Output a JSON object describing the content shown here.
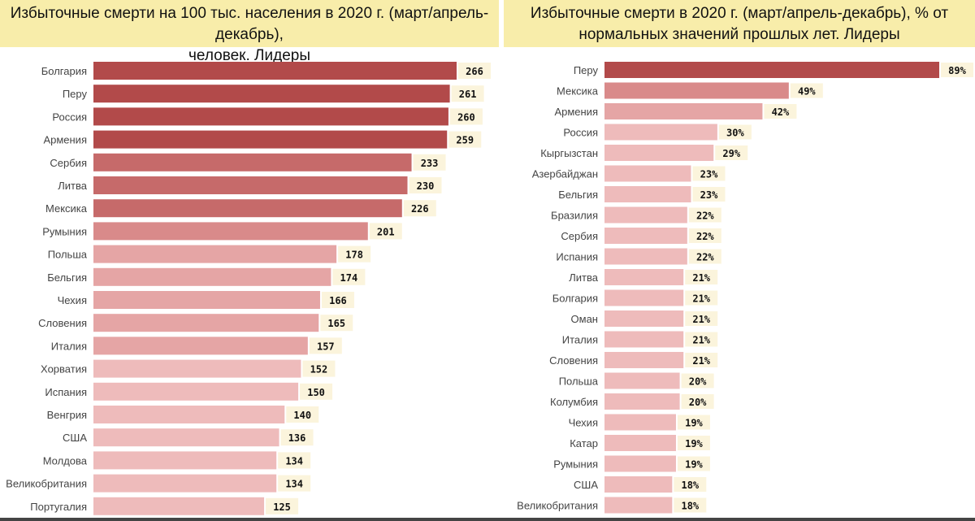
{
  "colors": {
    "title_bg": "#f8edaa",
    "value_bg": "#fbf4dc",
    "bar_scale": [
      "#b24a4a",
      "#c66a6a",
      "#d98a8a",
      "#e5a5a5",
      "#eebbbb"
    ]
  },
  "chart_data": [
    {
      "type": "bar",
      "orientation": "horizontal",
      "title": "Избыточные смерти на 100 тыс. населения в 2020 г. (март/апрель-декабрь), человек. Лидеры",
      "title_lines": [
        "Избыточные смерти на 100 тыс. населения в 2020 г. (март/апрель-декабрь),",
        "человек. Лидеры"
      ],
      "categories": [
        "Болгария",
        "Перу",
        "Россия",
        "Армения",
        "Сербия",
        "Литва",
        "Мексика",
        "Румыния",
        "Польша",
        "Бельгия",
        "Чехия",
        "Словения",
        "Италия",
        "Хорватия",
        "Испания",
        "Венгрия",
        "США",
        "Молдова",
        "Великобритания",
        "Португалия"
      ],
      "values": [
        266,
        261,
        260,
        259,
        233,
        230,
        226,
        201,
        178,
        174,
        166,
        165,
        157,
        152,
        150,
        140,
        136,
        134,
        134,
        125
      ],
      "value_labels": [
        "266",
        "261",
        "260",
        "259",
        "233",
        "230",
        "226",
        "201",
        "178",
        "174",
        "166",
        "165",
        "157",
        "152",
        "150",
        "140",
        "136",
        "134",
        "134",
        "125"
      ],
      "xlim": [
        0,
        266
      ],
      "grid": false,
      "legend": "none"
    },
    {
      "type": "bar",
      "orientation": "horizontal",
      "title": "Избыточные смерти в 2020 г. (март/апрель-декабрь), % от нормальных значений прошлых лет. Лидеры",
      "title_lines": [
        "Избыточные смерти в 2020 г. (март/апрель-декабрь), % от",
        "нормальных значений прошлых лет. Лидеры"
      ],
      "categories": [
        "Перу",
        "Мексика",
        "Армения",
        "Россия",
        "Кыргызстан",
        "Азербайджан",
        "Бельгия",
        "Бразилия",
        "Сербия",
        "Испания",
        "Литва",
        "Болгария",
        "Оман",
        "Италия",
        "Словения",
        "Польша",
        "Колумбия",
        "Чехия",
        "Катар",
        "Румыния",
        "США",
        "Великобритания"
      ],
      "values": [
        89,
        49,
        42,
        30,
        29,
        23,
        23,
        22,
        22,
        22,
        21,
        21,
        21,
        21,
        21,
        20,
        20,
        19,
        19,
        19,
        18,
        18
      ],
      "value_labels": [
        "89%",
        "49%",
        "42%",
        "30%",
        "29%",
        "23%",
        "23%",
        "22%",
        "22%",
        "22%",
        "21%",
        "21%",
        "21%",
        "21%",
        "21%",
        "20%",
        "20%",
        "19%",
        "19%",
        "19%",
        "18%",
        "18%"
      ],
      "xlim": [
        0,
        89
      ],
      "grid": false,
      "legend": "none"
    }
  ]
}
